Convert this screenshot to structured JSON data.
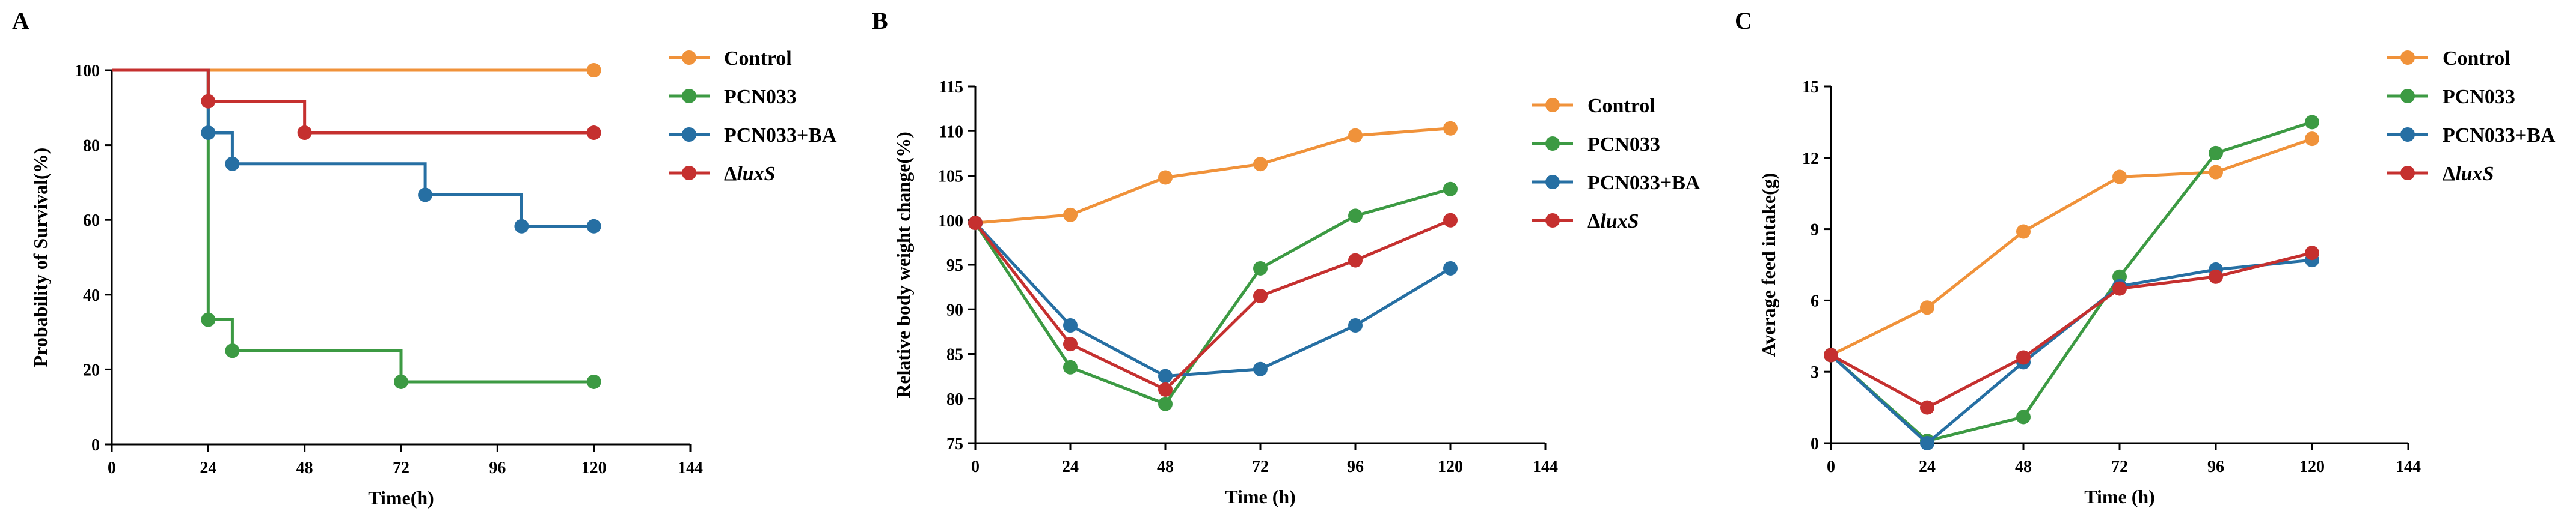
{
  "colors": {
    "control": "#f0923a",
    "pcn033": "#3c9a43",
    "pcn033ba": "#266fa3",
    "luxs": "#c5302f",
    "axis": "#000000"
  },
  "chart_data": [
    {
      "panel": "A",
      "type": "line",
      "step": true,
      "title": "",
      "xlabel": "Time(h)",
      "ylabel": "Probability of Survival(%)",
      "xlim": [
        0,
        144
      ],
      "ylim": [
        0,
        100
      ],
      "xticks": [
        0,
        24,
        48,
        72,
        96,
        120,
        144
      ],
      "yticks": [
        0,
        20,
        40,
        60,
        80,
        100
      ],
      "legend": [
        "Control",
        "PCN033",
        "PCN033+BA",
        "luxS"
      ],
      "legend_delta": "Δ",
      "series": [
        {
          "name": "Control",
          "key": "control",
          "x": [
            0,
            120
          ],
          "y": [
            100,
            100
          ],
          "markers": [
            [
              120,
              100
            ]
          ]
        },
        {
          "name": "PCN033",
          "key": "pcn033",
          "x": [
            0,
            24,
            24,
            30,
            72,
            120
          ],
          "y": [
            100,
            100,
            33.3,
            25,
            16.7,
            16.7
          ],
          "markers": [
            [
              24,
              33.3
            ],
            [
              30,
              25
            ],
            [
              72,
              16.7
            ],
            [
              120,
              16.7
            ]
          ]
        },
        {
          "name": "PCN033+BA",
          "key": "pcn033ba",
          "x": [
            0,
            24,
            30,
            78,
            102,
            120
          ],
          "y": [
            100,
            83.3,
            75,
            66.7,
            58.3,
            58.3
          ],
          "markers": [
            [
              24,
              83.3
            ],
            [
              30,
              75
            ],
            [
              78,
              66.7
            ],
            [
              102,
              58.3
            ],
            [
              120,
              58.3
            ]
          ]
        },
        {
          "name": "luxS",
          "key": "luxs",
          "x": [
            0,
            24,
            48,
            120
          ],
          "y": [
            100,
            91.7,
            83.3,
            83.3
          ],
          "markers": [
            [
              24,
              91.7
            ],
            [
              48,
              83.3
            ],
            [
              120,
              83.3
            ]
          ]
        }
      ]
    },
    {
      "panel": "B",
      "type": "line",
      "step": false,
      "title": "",
      "xlabel": "Time (h)",
      "ylabel": "Relative body weight change(%)",
      "xlim": [
        0,
        144
      ],
      "ylim": [
        75,
        115
      ],
      "xticks": [
        0,
        24,
        48,
        72,
        96,
        120,
        144
      ],
      "yticks": [
        75,
        80,
        85,
        90,
        95,
        100,
        105,
        110,
        115
      ],
      "legend": [
        "Control",
        "PCN033",
        "PCN033+BA",
        "luxS"
      ],
      "legend_delta": "Δ",
      "series": [
        {
          "name": "Control",
          "key": "control",
          "x": [
            0,
            24,
            48,
            72,
            96,
            120
          ],
          "y": [
            99.7,
            100.6,
            104.8,
            106.3,
            109.5,
            110.3
          ]
        },
        {
          "name": "PCN033",
          "key": "pcn033",
          "x": [
            0,
            24,
            48,
            72,
            96,
            120
          ],
          "y": [
            99.7,
            83.5,
            79.4,
            94.6,
            100.5,
            103.5
          ]
        },
        {
          "name": "PCN033+BA",
          "key": "pcn033ba",
          "x": [
            0,
            24,
            48,
            72,
            96,
            120
          ],
          "y": [
            99.7,
            88.2,
            82.5,
            83.3,
            88.2,
            94.6
          ]
        },
        {
          "name": "luxS",
          "key": "luxs",
          "x": [
            0,
            24,
            48,
            72,
            96,
            120
          ],
          "y": [
            99.7,
            86.1,
            81.0,
            91.5,
            95.5,
            100.0
          ]
        }
      ]
    },
    {
      "panel": "C",
      "type": "line",
      "step": false,
      "title": "",
      "xlabel": "Time (h)",
      "ylabel": "Average feed intake(g)",
      "xlim": [
        0,
        144
      ],
      "ylim": [
        0,
        15
      ],
      "xticks": [
        0,
        24,
        48,
        72,
        96,
        120,
        144
      ],
      "yticks": [
        0,
        3,
        6,
        9,
        12,
        15
      ],
      "legend": [
        "Control",
        "PCN033",
        "PCN033+BA",
        "luxS"
      ],
      "legend_delta": "Δ",
      "series": [
        {
          "name": "Control",
          "key": "control",
          "x": [
            0,
            24,
            48,
            72,
            96,
            120
          ],
          "y": [
            3.7,
            5.7,
            8.9,
            11.2,
            11.4,
            12.8
          ]
        },
        {
          "name": "PCN033",
          "key": "pcn033",
          "x": [
            0,
            24,
            48,
            72,
            96,
            120
          ],
          "y": [
            3.7,
            0.1,
            1.1,
            7.0,
            12.2,
            13.5
          ]
        },
        {
          "name": "PCN033+BA",
          "key": "pcn033ba",
          "x": [
            0,
            24,
            48,
            72,
            96,
            120
          ],
          "y": [
            3.7,
            0.0,
            3.4,
            6.6,
            7.3,
            7.7
          ]
        },
        {
          "name": "luxS",
          "key": "luxs",
          "x": [
            0,
            24,
            48,
            72,
            96,
            120
          ],
          "y": [
            3.7,
            1.5,
            3.6,
            6.5,
            7.0,
            8.0
          ]
        }
      ]
    }
  ]
}
